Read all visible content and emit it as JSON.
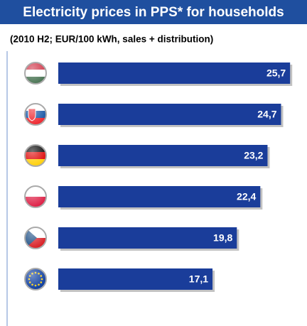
{
  "chart_data": {
    "type": "hbar",
    "title": "Electricity prices in PPS* for households",
    "subtitle": "(2010 H2; EUR/100 kWh, sales + distribution)",
    "categories": [
      null,
      null,
      null,
      null,
      null,
      null
    ],
    "values": [
      25.7,
      24.7,
      23.2,
      22.4,
      19.8,
      17.1
    ],
    "value_labels": [
      "25,7",
      "24,7",
      "23,2",
      "22,4",
      "19,8",
      "17,1"
    ],
    "color": "#1a3d9a",
    "xlim": [
      0,
      26
    ]
  }
}
